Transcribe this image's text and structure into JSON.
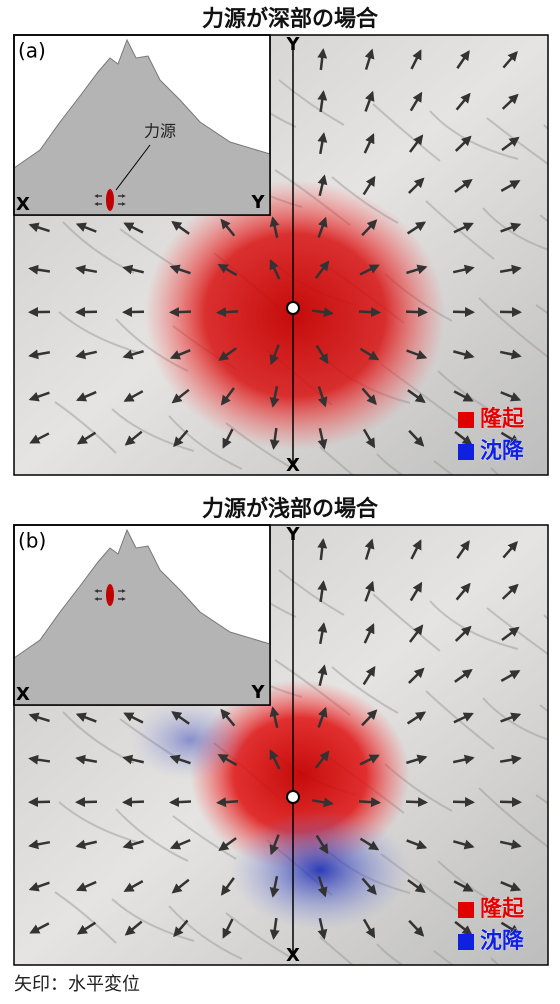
{
  "panels": [
    {
      "title": "力源が深部の場合",
      "label": "(a)",
      "source_label": "力源",
      "inset_x": "X",
      "inset_y": "Y",
      "axis_top": "Y",
      "axis_bottom": "X",
      "legend": [
        "隆起",
        "沈降"
      ]
    },
    {
      "title": "力源が浅部の場合",
      "label": "(b)",
      "inset_x": "X",
      "inset_y": "Y",
      "axis_top": "Y",
      "axis_bottom": "X",
      "legend": [
        "隆起",
        "沈降"
      ]
    }
  ],
  "caption": "矢印：水平変位"
}
